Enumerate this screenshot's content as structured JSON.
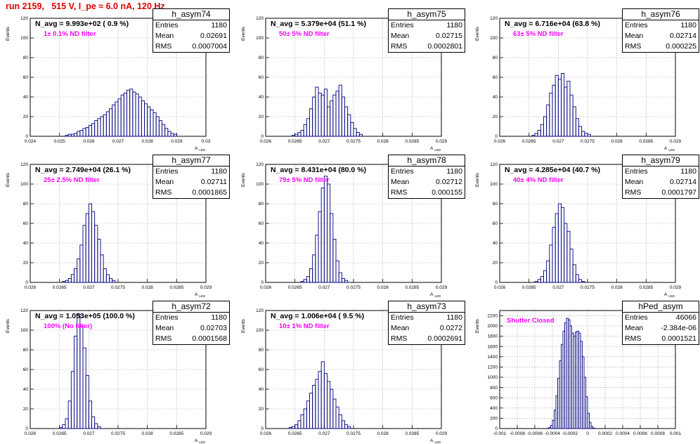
{
  "header": {
    "title": "run 2159,   515 V, I_pe ≈ 6.0 nA, 120 Hz"
  },
  "colors": {
    "histogram": "#000080",
    "title_red": "#e00000",
    "annotation": "#ff00ff",
    "grid": "#999999"
  },
  "chart_data": [
    {
      "type": "bar",
      "name": "h_asym74",
      "entries": "1180",
      "mean": "0.02691",
      "rms": "0.0007004",
      "n_avg": "N_avg = 9.993e+02 ( 0.9 %)",
      "annotation": "1± 0.1% ND filter",
      "ylabel": "Events",
      "xlabel": "A",
      "xlabel_sub": "LED",
      "grid": true,
      "xlim": [
        0.024,
        0.03
      ],
      "ylim": [
        0,
        120
      ],
      "xticks": [
        "0.024",
        "0.025",
        "0.026",
        "0.027",
        "0.028",
        "0.029",
        "0.03"
      ],
      "yticks": [
        "0",
        "20",
        "40",
        "60",
        "80",
        "100",
        "120"
      ],
      "bins": {
        "start": 0.0252,
        "width": 0.0001,
        "values": [
          1,
          2,
          2,
          3,
          5,
          6,
          8,
          9,
          11,
          13,
          16,
          18,
          20,
          22,
          25,
          28,
          32,
          35,
          38,
          42,
          44,
          47,
          48,
          45,
          43,
          40,
          36,
          33,
          30,
          27,
          24,
          20,
          16,
          12,
          8,
          5,
          3,
          2
        ]
      }
    },
    {
      "type": "bar",
      "name": "h_asym75",
      "entries": "1180",
      "mean": "0.02715",
      "rms": "0.0002801",
      "n_avg": "N_avg = 5.379e+04 (51.1 %)",
      "annotation": "50± 5% ND filter",
      "ylabel": "Events",
      "xlabel": "A",
      "xlabel_sub": "LED",
      "grid": true,
      "xlim": [
        0.026,
        0.029
      ],
      "ylim": [
        0,
        120
      ],
      "xticks": [
        "0.026",
        "0.0265",
        "0.027",
        "0.0275",
        "0.028",
        "0.0285",
        "0.029"
      ],
      "yticks": [
        "0",
        "20",
        "40",
        "60",
        "80",
        "100",
        "120"
      ],
      "bins": {
        "start": 0.02645,
        "width": 5e-05,
        "values": [
          1,
          2,
          4,
          6,
          12,
          18,
          28,
          40,
          50,
          44,
          42,
          48,
          30,
          36,
          42,
          46,
          52,
          40,
          30,
          22,
          14,
          8,
          4,
          2
        ]
      }
    },
    {
      "type": "bar",
      "name": "h_asym76",
      "entries": "1180",
      "mean": "0.02714",
      "rms": "0.000225",
      "n_avg": "N_avg = 6.716e+04 (63.8 %)",
      "annotation": "63± 5% ND filter",
      "ylabel": "Events",
      "xlabel": "A",
      "xlabel_sub": "LED",
      "grid": true,
      "xlim": [
        0.026,
        0.029
      ],
      "ylim": [
        0,
        120
      ],
      "xticks": [
        "0.026",
        "0.0265",
        "0.027",
        "0.0275",
        "0.028",
        "0.0285",
        "0.029"
      ],
      "yticks": [
        "0",
        "20",
        "40",
        "60",
        "80",
        "100",
        "120"
      ],
      "bins": {
        "start": 0.02655,
        "width": 5e-05,
        "values": [
          1,
          3,
          6,
          12,
          20,
          32,
          44,
          52,
          62,
          58,
          64,
          50,
          56,
          42,
          30,
          18,
          10,
          5,
          3,
          2
        ]
      }
    },
    {
      "type": "bar",
      "name": "h_asym77",
      "entries": "1180",
      "mean": "0.02711",
      "rms": "0.0001865",
      "n_avg": "N_avg = 2.749e+04 (26.1 %)",
      "annotation": "25± 2.5% ND filter",
      "ylabel": "Events",
      "xlabel": "A",
      "xlabel_sub": "LED",
      "grid": true,
      "xlim": [
        0.026,
        0.029
      ],
      "ylim": [
        0,
        120
      ],
      "xticks": [
        "0.026",
        "0.0265",
        "0.027",
        "0.0275",
        "0.028",
        "0.0285",
        "0.029"
      ],
      "yticks": [
        "0",
        "20",
        "40",
        "60",
        "80",
        "100",
        "120"
      ],
      "bins": {
        "start": 0.02655,
        "width": 5e-05,
        "values": [
          1,
          2,
          4,
          8,
          14,
          24,
          38,
          58,
          70,
          80,
          72,
          58,
          44,
          28,
          14,
          8,
          4,
          2
        ]
      }
    },
    {
      "type": "bar",
      "name": "h_asym78",
      "entries": "1180",
      "mean": "0.02712",
      "rms": "0.000155",
      "n_avg": "N_avg = 8.431e+04 (80.0 %)",
      "annotation": "79± 5% ND filter",
      "ylabel": "Events",
      "xlabel": "A",
      "xlabel_sub": "LED",
      "grid": true,
      "xlim": [
        0.026,
        0.029
      ],
      "ylim": [
        0,
        120
      ],
      "xticks": [
        "0.026",
        "0.0265",
        "0.027",
        "0.0275",
        "0.028",
        "0.0285",
        "0.029"
      ],
      "yticks": [
        "0",
        "20",
        "40",
        "60",
        "80",
        "100",
        "120"
      ],
      "bins": {
        "start": 0.0266,
        "width": 5e-05,
        "values": [
          1,
          3,
          6,
          14,
          28,
          48,
          72,
          96,
          108,
          100,
          70,
          44,
          22,
          10,
          4,
          2
        ]
      }
    },
    {
      "type": "bar",
      "name": "h_asym79",
      "entries": "1180",
      "mean": "0.02714",
      "rms": "0.0001797",
      "n_avg": "N_avg = 4.285e+04 (40.7 %)",
      "annotation": "40± 4% ND filter",
      "ylabel": "Events",
      "xlabel": "A",
      "xlabel_sub": "LED",
      "grid": true,
      "xlim": [
        0.026,
        0.029
      ],
      "ylim": [
        0,
        120
      ],
      "xticks": [
        "0.026",
        "0.0265",
        "0.027",
        "0.0275",
        "0.028",
        "0.0285",
        "0.029"
      ],
      "yticks": [
        "0",
        "20",
        "40",
        "60",
        "80",
        "100",
        "120"
      ],
      "bins": {
        "start": 0.0266,
        "width": 5e-05,
        "values": [
          1,
          3,
          6,
          12,
          22,
          38,
          56,
          70,
          80,
          76,
          60,
          52,
          34,
          18,
          8,
          3,
          1
        ]
      }
    },
    {
      "type": "bar",
      "name": "h_asym72",
      "entries": "1180",
      "mean": "0.02703",
      "rms": "0.0001568",
      "n_avg": "N_avg = 1.053e+05 (100.0 %)",
      "annotation": "100% (No filter)",
      "ylabel": "Events",
      "xlabel": "A",
      "xlabel_sub": "LED",
      "grid": true,
      "xlim": [
        0.026,
        0.029
      ],
      "ylim": [
        0,
        120
      ],
      "xticks": [
        "0.026",
        "0.0265",
        "0.027",
        "0.0275",
        "0.028",
        "0.0285",
        "0.029"
      ],
      "yticks": [
        "0",
        "20",
        "40",
        "60",
        "80",
        "100",
        "120"
      ],
      "bins": {
        "start": 0.0265,
        "width": 5e-05,
        "values": [
          1,
          4,
          10,
          28,
          58,
          94,
          116,
          104,
          82,
          54,
          28,
          12,
          5,
          2
        ]
      }
    },
    {
      "type": "bar",
      "name": "h_asym73",
      "entries": "1180",
      "mean": "0.0272",
      "rms": "0.0002691",
      "n_avg": "N_avg = 1.006e+04 ( 9.5 %)",
      "annotation": "10± 1% ND filter",
      "ylabel": "Events",
      "xlabel": "A",
      "xlabel_sub": "LED",
      "grid": true,
      "xlim": [
        0.026,
        0.029
      ],
      "ylim": [
        0,
        120
      ],
      "xticks": [
        "0.026",
        "0.0265",
        "0.027",
        "0.0275",
        "0.028",
        "0.0285",
        "0.029"
      ],
      "yticks": [
        "0",
        "20",
        "40",
        "60",
        "80",
        "100",
        "120"
      ],
      "bins": {
        "start": 0.0264,
        "width": 5e-05,
        "values": [
          1,
          2,
          4,
          8,
          14,
          20,
          28,
          36,
          44,
          50,
          58,
          68,
          56,
          48,
          40,
          30,
          22,
          14,
          8,
          4,
          2
        ]
      }
    },
    {
      "type": "bar",
      "name": "hPed_asym",
      "entries": "46066",
      "mean": "-2.384e-06",
      "rms": "0.0001521",
      "n_avg": "",
      "annotation": "Shutter Closed",
      "ylabel": "Events",
      "xlabel": "",
      "xlabel_sub": "",
      "grid": true,
      "xlim": [
        -0.001,
        0.001
      ],
      "ylim": [
        0,
        2300
      ],
      "xticks": [
        "-0.001",
        "-0.0008",
        "-0.0006",
        "-0.0004",
        "-0.0002",
        "0",
        "0.0002",
        "0.0004",
        "0.0006",
        "0.0008",
        "0.001"
      ],
      "yticks": [
        "0",
        "200",
        "400",
        "600",
        "800",
        "1000",
        "1200",
        "1400",
        "1600",
        "1800",
        "2000",
        "2200"
      ],
      "bins": {
        "start": -0.00046,
        "width": 2e-05,
        "values": [
          5,
          20,
          60,
          160,
          360,
          640,
          980,
          1320,
          1640,
          1900,
          2060,
          2150,
          2120,
          2000,
          1860,
          1800,
          1880,
          1900,
          1860,
          1700,
          1400,
          1000,
          620,
          300,
          120,
          40,
          10
        ]
      }
    }
  ]
}
